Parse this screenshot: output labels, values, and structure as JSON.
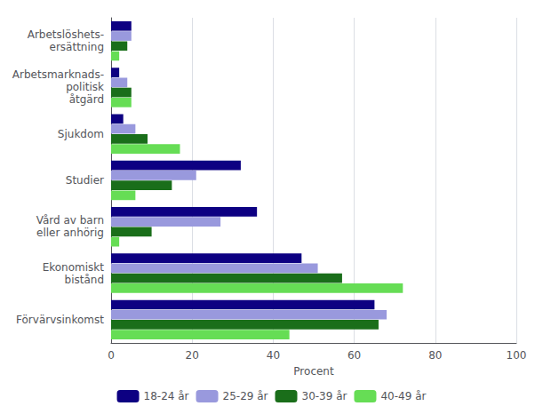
{
  "chart_data": {
    "type": "bar",
    "orientation": "horizontal",
    "categories": [
      "Förvärvsinkomst",
      "Ekonomiskt\nbistånd",
      "Vård av barn\neller anhörig",
      "Studier",
      "Sjukdom",
      "Arbetsmarknads-\npolitisk\nåtgärd",
      "Arbetslöshets-\nersättning"
    ],
    "series": [
      {
        "name": "18-24 år",
        "color": "#0d0082",
        "values": [
          65,
          47,
          36,
          32,
          3,
          2,
          5
        ]
      },
      {
        "name": "25-29 år",
        "color": "#9999dd",
        "values": [
          68,
          51,
          27,
          21,
          6,
          4,
          5
        ]
      },
      {
        "name": "30-39 år",
        "color": "#1a6e1a",
        "values": [
          66,
          57,
          10,
          15,
          9,
          5,
          4
        ]
      },
      {
        "name": "40-49 år",
        "color": "#66dd55",
        "values": [
          44,
          72,
          2,
          6,
          17,
          5,
          2
        ]
      }
    ],
    "xlabel": "Procent",
    "xlim": [
      0,
      100
    ],
    "xticks": [
      0,
      20,
      40,
      60,
      80,
      100
    ],
    "grid": true,
    "legend": "bottom"
  }
}
